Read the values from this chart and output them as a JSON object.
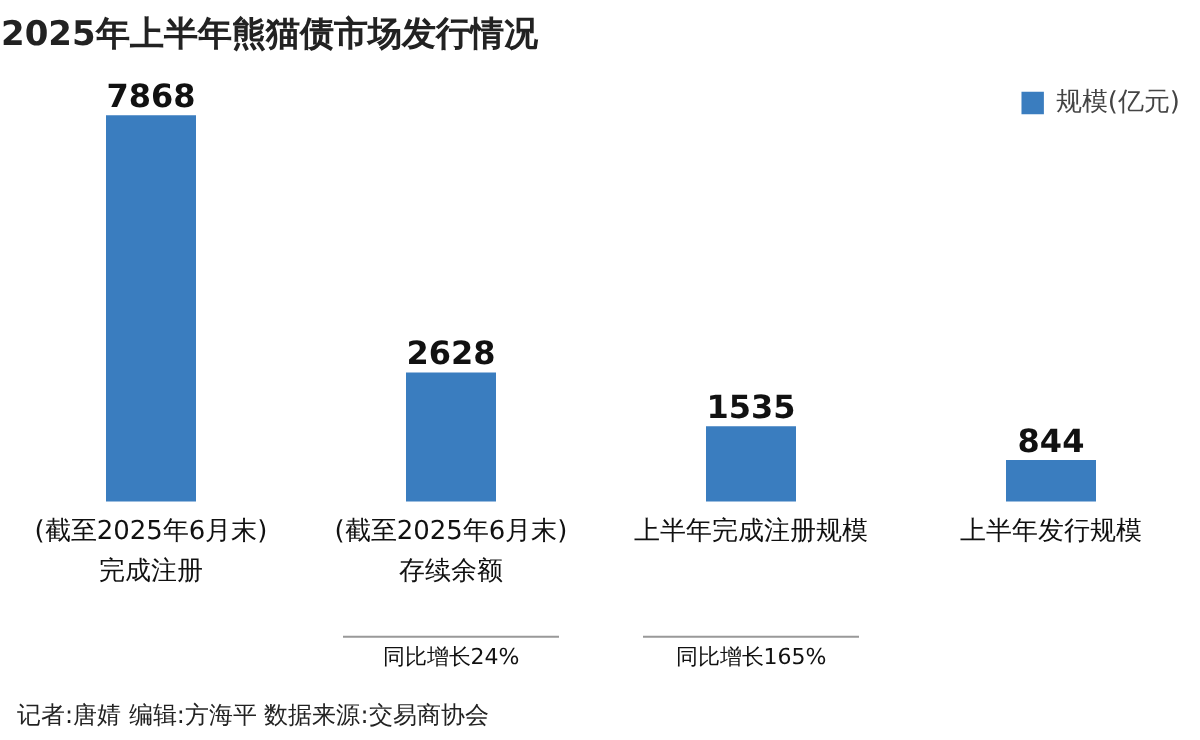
{
  "chart_data": {
    "type": "bar",
    "title": "2025年上半年熊猫债市场发行情况",
    "categories": [
      "(截至2025年6月末)\n完成注册",
      "(截至2025年6月末)\n存续余额",
      "上半年完成注册规模",
      "上半年发行规模"
    ],
    "series": [
      {
        "name": "规模(亿元)",
        "color": "#3a7dbf",
        "values": [
          7868,
          2628,
          1535,
          844
        ]
      }
    ],
    "data_labels": true,
    "legend": "top right",
    "grid": false,
    "annotations": [
      "同比增长24%",
      "同比增长165%",
      "记者:唐婧  编辑:方海平  数据来源:交易商协会"
    ]
  }
}
